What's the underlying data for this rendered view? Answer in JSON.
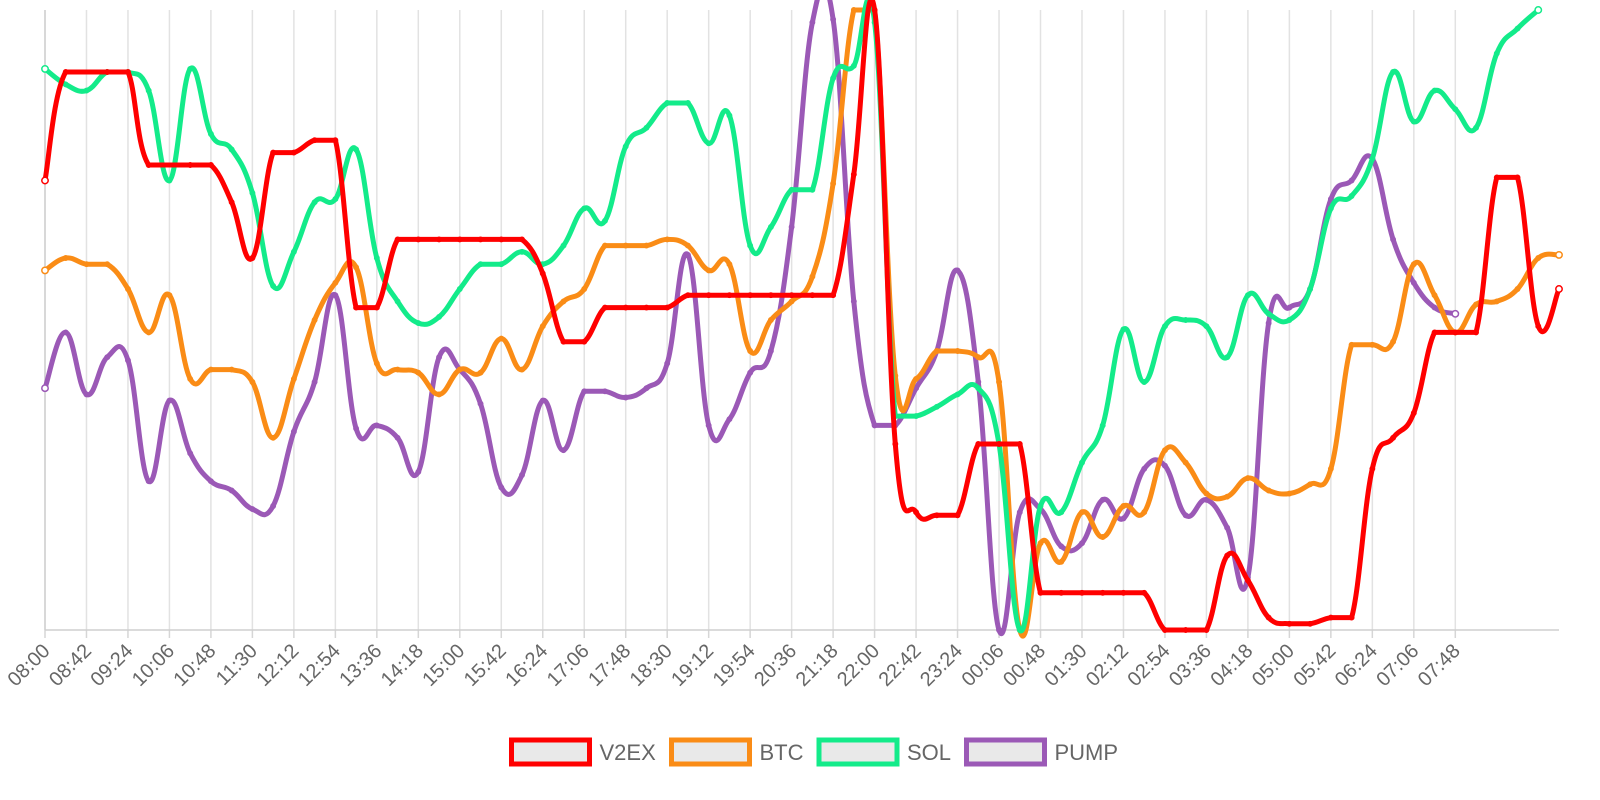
{
  "chart_data": {
    "type": "line",
    "title": "",
    "xlabel": "",
    "ylabel": "",
    "grid": true,
    "y_axis_labels_visible": false,
    "legend_position": "bottom",
    "x": [
      "08:00",
      "08:42",
      "09:24",
      "10:06",
      "10:48",
      "11:30",
      "12:12",
      "12:54",
      "13:36",
      "14:18",
      "15:00",
      "15:42",
      "16:24",
      "17:06",
      "17:48",
      "18:30",
      "19:12",
      "19:54",
      "20:36",
      "21:18",
      "22:00",
      "22:42",
      "23:24",
      "00:06",
      "00:48",
      "01:30",
      "02:12",
      "02:54",
      "03:36",
      "04:18",
      "05:00",
      "05:42",
      "06:24",
      "07:06",
      "07:48"
    ],
    "series": [
      {
        "name": "V2EX",
        "color": "#ff0000",
        "points": [
          [
            0,
            72.5
          ],
          [
            21,
            90
          ],
          [
            63,
            90
          ],
          [
            84,
            90
          ],
          [
            105,
            75
          ],
          [
            147,
            75
          ],
          [
            168,
            75
          ],
          [
            189,
            69
          ],
          [
            210,
            60
          ],
          [
            231,
            77
          ],
          [
            252,
            77
          ],
          [
            273,
            79
          ],
          [
            294,
            79
          ],
          [
            315,
            52
          ],
          [
            336,
            52
          ],
          [
            357,
            63
          ],
          [
            378,
            63
          ],
          [
            399,
            63
          ],
          [
            420,
            63
          ],
          [
            441,
            63
          ],
          [
            462,
            63
          ],
          [
            483,
            63
          ],
          [
            504,
            57.5
          ],
          [
            525,
            46.5
          ],
          [
            546,
            46.5
          ],
          [
            567,
            52
          ],
          [
            588,
            52
          ],
          [
            609,
            52
          ],
          [
            630,
            52
          ],
          [
            651,
            54
          ],
          [
            672,
            54
          ],
          [
            693,
            54
          ],
          [
            714,
            54
          ],
          [
            735,
            54
          ],
          [
            756,
            54
          ],
          [
            777,
            54
          ],
          [
            798,
            54
          ],
          [
            819,
            73.5
          ],
          [
            840,
            100
          ],
          [
            861,
            30
          ],
          [
            882,
            19
          ],
          [
            903,
            18.5
          ],
          [
            924,
            18.5
          ],
          [
            945,
            30
          ],
          [
            966,
            30
          ],
          [
            987,
            30
          ],
          [
            1008,
            6
          ],
          [
            1029,
            6
          ],
          [
            1050,
            6
          ],
          [
            1071,
            6
          ],
          [
            1092,
            6
          ],
          [
            1113,
            6
          ],
          [
            1134,
            0
          ],
          [
            1155,
            0
          ],
          [
            1176,
            0
          ],
          [
            1197,
            12
          ],
          [
            1218,
            8
          ],
          [
            1239,
            2
          ],
          [
            1260,
            1
          ],
          [
            1281,
            1
          ],
          [
            1302,
            2
          ],
          [
            1323,
            2
          ],
          [
            1344,
            26
          ],
          [
            1365,
            31
          ],
          [
            1386,
            35
          ],
          [
            1407,
            48
          ],
          [
            1428,
            48
          ],
          [
            1449,
            48
          ],
          [
            1470,
            73
          ],
          [
            1491,
            73
          ],
          [
            1512,
            49
          ],
          [
            1533,
            55
          ]
        ]
      },
      {
        "name": "BTC",
        "color": "#fa8c16",
        "points": [
          [
            0,
            58
          ],
          [
            21,
            60
          ],
          [
            42,
            59
          ],
          [
            63,
            59
          ],
          [
            84,
            55
          ],
          [
            105,
            48
          ],
          [
            126,
            54
          ],
          [
            147,
            40.5
          ],
          [
            168,
            42
          ],
          [
            189,
            42
          ],
          [
            210,
            40
          ],
          [
            231,
            31
          ],
          [
            252,
            40.5
          ],
          [
            273,
            50
          ],
          [
            294,
            56
          ],
          [
            315,
            58.5
          ],
          [
            336,
            43
          ],
          [
            357,
            42
          ],
          [
            378,
            41.5
          ],
          [
            399,
            38
          ],
          [
            420,
            42
          ],
          [
            441,
            41.5
          ],
          [
            462,
            47
          ],
          [
            483,
            42
          ],
          [
            504,
            49
          ],
          [
            525,
            53
          ],
          [
            546,
            55
          ],
          [
            567,
            62
          ],
          [
            588,
            62
          ],
          [
            609,
            62
          ],
          [
            630,
            63
          ],
          [
            651,
            62
          ],
          [
            672,
            58
          ],
          [
            693,
            59
          ],
          [
            714,
            45
          ],
          [
            735,
            50
          ],
          [
            756,
            53
          ],
          [
            777,
            57
          ],
          [
            798,
            72
          ],
          [
            819,
            100
          ],
          [
            840,
            100
          ],
          [
            861,
            41
          ],
          [
            882,
            40.5
          ],
          [
            903,
            45
          ],
          [
            924,
            45
          ],
          [
            945,
            44
          ],
          [
            966,
            40
          ],
          [
            987,
            0
          ],
          [
            1008,
            14
          ],
          [
            1029,
            11
          ],
          [
            1050,
            19
          ],
          [
            1071,
            15
          ],
          [
            1092,
            20
          ],
          [
            1113,
            19
          ],
          [
            1134,
            29
          ],
          [
            1155,
            27
          ],
          [
            1176,
            22
          ],
          [
            1197,
            21.5
          ],
          [
            1218,
            24.5
          ],
          [
            1239,
            22.5
          ],
          [
            1260,
            22
          ],
          [
            1281,
            23.5
          ],
          [
            1302,
            26
          ],
          [
            1323,
            46
          ],
          [
            1344,
            46
          ],
          [
            1365,
            46.5
          ],
          [
            1386,
            59
          ],
          [
            1407,
            54
          ],
          [
            1428,
            48
          ],
          [
            1449,
            52.5
          ],
          [
            1470,
            53
          ],
          [
            1491,
            55
          ],
          [
            1512,
            60
          ],
          [
            1533,
            60.5
          ]
        ]
      },
      {
        "name": "SOL",
        "color": "#13eb8a",
        "points": [
          [
            0,
            90.5
          ],
          [
            21,
            88
          ],
          [
            42,
            87
          ],
          [
            63,
            90
          ],
          [
            84,
            90
          ],
          [
            105,
            87
          ],
          [
            126,
            72.5
          ],
          [
            147,
            90.5
          ],
          [
            168,
            80
          ],
          [
            189,
            77.5
          ],
          [
            210,
            70.5
          ],
          [
            231,
            55.5
          ],
          [
            252,
            61
          ],
          [
            273,
            69
          ],
          [
            294,
            69.5
          ],
          [
            315,
            77.5
          ],
          [
            336,
            60
          ],
          [
            357,
            53
          ],
          [
            378,
            49.5
          ],
          [
            399,
            50.5
          ],
          [
            420,
            55
          ],
          [
            441,
            59
          ],
          [
            462,
            59
          ],
          [
            483,
            61
          ],
          [
            504,
            59
          ],
          [
            525,
            62
          ],
          [
            546,
            68
          ],
          [
            567,
            66
          ],
          [
            588,
            78
          ],
          [
            609,
            81
          ],
          [
            630,
            85
          ],
          [
            651,
            85
          ],
          [
            672,
            78.5
          ],
          [
            693,
            83
          ],
          [
            714,
            62
          ],
          [
            735,
            65
          ],
          [
            756,
            71
          ],
          [
            777,
            71
          ],
          [
            798,
            89
          ],
          [
            819,
            91
          ],
          [
            840,
            98
          ],
          [
            861,
            34.5
          ],
          [
            882,
            34.5
          ],
          [
            903,
            36
          ],
          [
            924,
            38
          ],
          [
            945,
            39
          ],
          [
            966,
            30
          ],
          [
            987,
            0
          ],
          [
            1008,
            20
          ],
          [
            1029,
            19
          ],
          [
            1050,
            27
          ],
          [
            1071,
            33
          ],
          [
            1092,
            48.5
          ],
          [
            1113,
            40
          ],
          [
            1134,
            49
          ],
          [
            1155,
            50
          ],
          [
            1176,
            49
          ],
          [
            1197,
            44
          ],
          [
            1218,
            54
          ],
          [
            1239,
            51
          ],
          [
            1260,
            50
          ],
          [
            1281,
            55
          ],
          [
            1302,
            68
          ],
          [
            1323,
            70
          ],
          [
            1344,
            76
          ],
          [
            1365,
            90
          ],
          [
            1386,
            82
          ],
          [
            1407,
            87
          ],
          [
            1428,
            84
          ],
          [
            1449,
            81
          ],
          [
            1470,
            93
          ],
          [
            1491,
            97
          ],
          [
            1512,
            100
          ]
        ]
      },
      {
        "name": "PUMP",
        "color": "#9b59b6",
        "points": [
          [
            0,
            39
          ],
          [
            21,
            48
          ],
          [
            42,
            38
          ],
          [
            63,
            44
          ],
          [
            84,
            43.5
          ],
          [
            105,
            24
          ],
          [
            126,
            37
          ],
          [
            147,
            28.5
          ],
          [
            168,
            24
          ],
          [
            189,
            22.5
          ],
          [
            210,
            19.5
          ],
          [
            231,
            20
          ],
          [
            252,
            32
          ],
          [
            273,
            40
          ],
          [
            294,
            54
          ],
          [
            315,
            32.5
          ],
          [
            336,
            33
          ],
          [
            357,
            31
          ],
          [
            378,
            25.5
          ],
          [
            399,
            44
          ],
          [
            420,
            42
          ],
          [
            441,
            36.5
          ],
          [
            462,
            23
          ],
          [
            483,
            25
          ],
          [
            504,
            37
          ],
          [
            525,
            29
          ],
          [
            546,
            38.5
          ],
          [
            567,
            38.5
          ],
          [
            588,
            37.5
          ],
          [
            609,
            39
          ],
          [
            630,
            43
          ],
          [
            651,
            60.5
          ],
          [
            672,
            33
          ],
          [
            693,
            34
          ],
          [
            714,
            41.5
          ],
          [
            735,
            45
          ],
          [
            756,
            65
          ],
          [
            777,
            98
          ],
          [
            798,
            98.5
          ],
          [
            819,
            53
          ],
          [
            840,
            33
          ],
          [
            861,
            33
          ],
          [
            882,
            39
          ],
          [
            903,
            45
          ],
          [
            924,
            58
          ],
          [
            945,
            40
          ],
          [
            966,
            0
          ],
          [
            987,
            19
          ],
          [
            1008,
            19.5
          ],
          [
            1029,
            13.5
          ],
          [
            1050,
            14
          ],
          [
            1071,
            21
          ],
          [
            1092,
            18
          ],
          [
            1113,
            26
          ],
          [
            1134,
            26.5
          ],
          [
            1155,
            18.5
          ],
          [
            1176,
            21
          ],
          [
            1197,
            16.5
          ],
          [
            1218,
            8.5
          ],
          [
            1239,
            49.5
          ],
          [
            1260,
            52
          ],
          [
            1281,
            55
          ],
          [
            1302,
            69.5
          ],
          [
            1323,
            72.5
          ],
          [
            1344,
            76
          ],
          [
            1365,
            63
          ],
          [
            1386,
            56
          ],
          [
            1407,
            52
          ],
          [
            1428,
            51
          ]
        ]
      }
    ]
  },
  "legend": {
    "items": [
      {
        "label": "V2EX",
        "color": "#ff0000"
      },
      {
        "label": "BTC",
        "color": "#fa8c16"
      },
      {
        "label": "SOL",
        "color": "#13eb8a"
      },
      {
        "label": "PUMP",
        "color": "#9b59b6"
      }
    ]
  }
}
